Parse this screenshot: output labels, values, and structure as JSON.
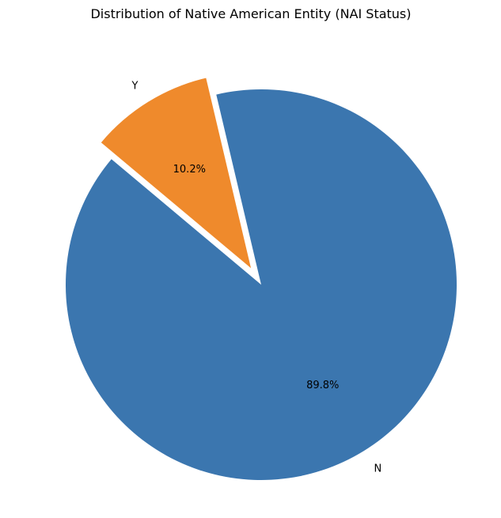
{
  "chart_data": {
    "type": "pie",
    "title": "Distribution of Native American Entity (NAI Status)",
    "slices": [
      {
        "label": "N",
        "value": 89.8,
        "pct_label": "89.8%",
        "color": "#3b76af",
        "exploded": false
      },
      {
        "label": "Y",
        "value": 10.2,
        "pct_label": "10.2%",
        "color": "#ef8a2c",
        "exploded": true
      }
    ],
    "start_angle_deg": 140,
    "direction": "counterclockwise"
  }
}
